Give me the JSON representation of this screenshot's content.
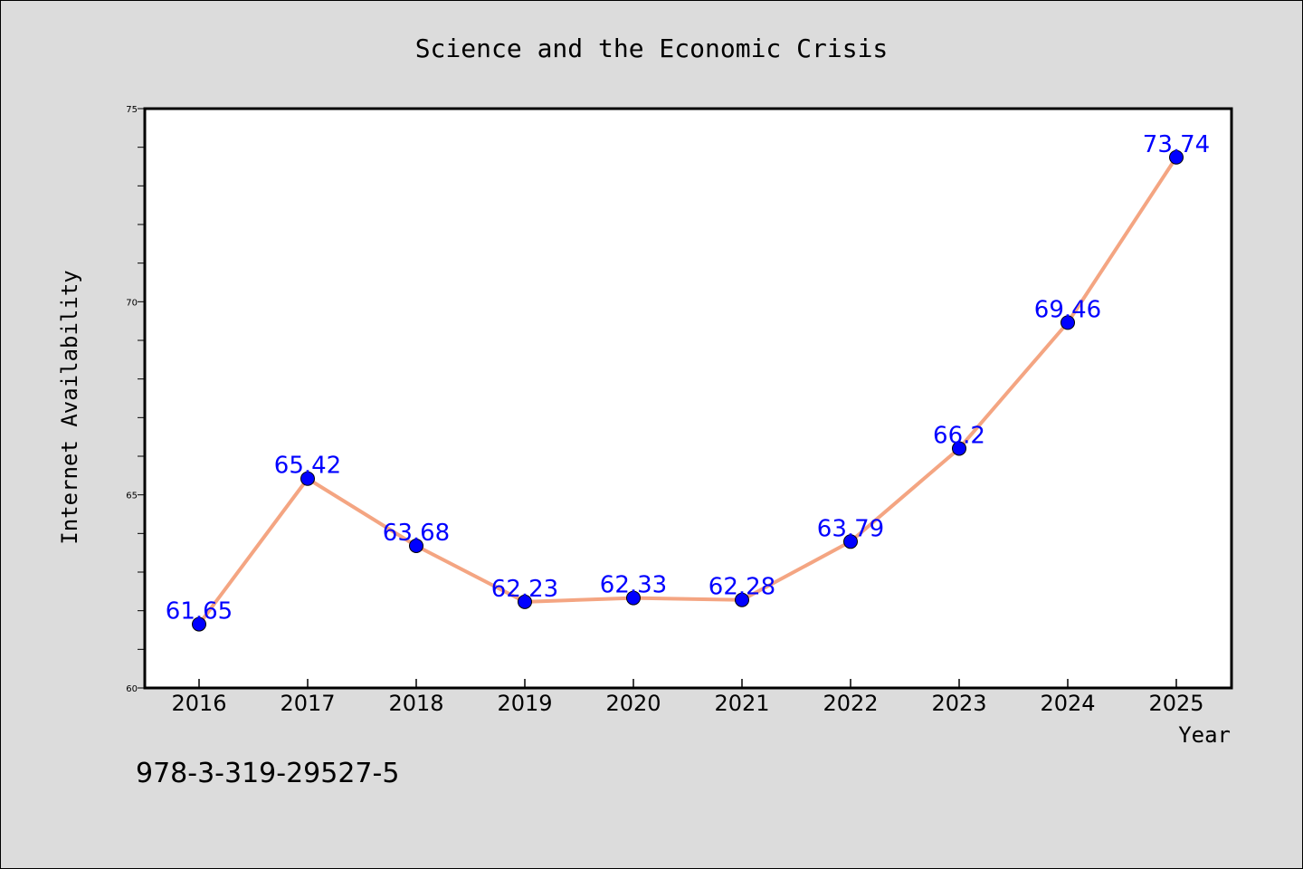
{
  "chart_data": {
    "type": "line",
    "title": "Science and the Economic Crisis",
    "xlabel": "Year",
    "ylabel": "Internet Availability",
    "categories": [
      "2016",
      "2017",
      "2018",
      "2019",
      "2020",
      "2021",
      "2022",
      "2023",
      "2024",
      "2025"
    ],
    "series": [
      {
        "values": [
          61.65,
          65.42,
          63.68,
          62.23,
          62.33,
          62.28,
          63.79,
          66.2,
          69.46,
          73.74
        ],
        "line_color": "#f4a582",
        "marker_color": "#0000ff"
      }
    ],
    "data_labels": [
      "61.65",
      "65.42",
      "63.68",
      "62.23",
      "62.33",
      "62.28",
      "63.79",
      "66.2",
      "69.46",
      "73.74"
    ],
    "ylim": [
      60,
      75
    ],
    "yticks": [
      60,
      65,
      70,
      75
    ],
    "ytick_labels": [
      "60",
      "65",
      "70",
      "75"
    ],
    "grid": false,
    "label_color": "#0000ff"
  },
  "footer_text": "978-3-319-29527-5",
  "colors": {
    "background": "#dcdcdc",
    "plot_background": "#ffffff"
  }
}
